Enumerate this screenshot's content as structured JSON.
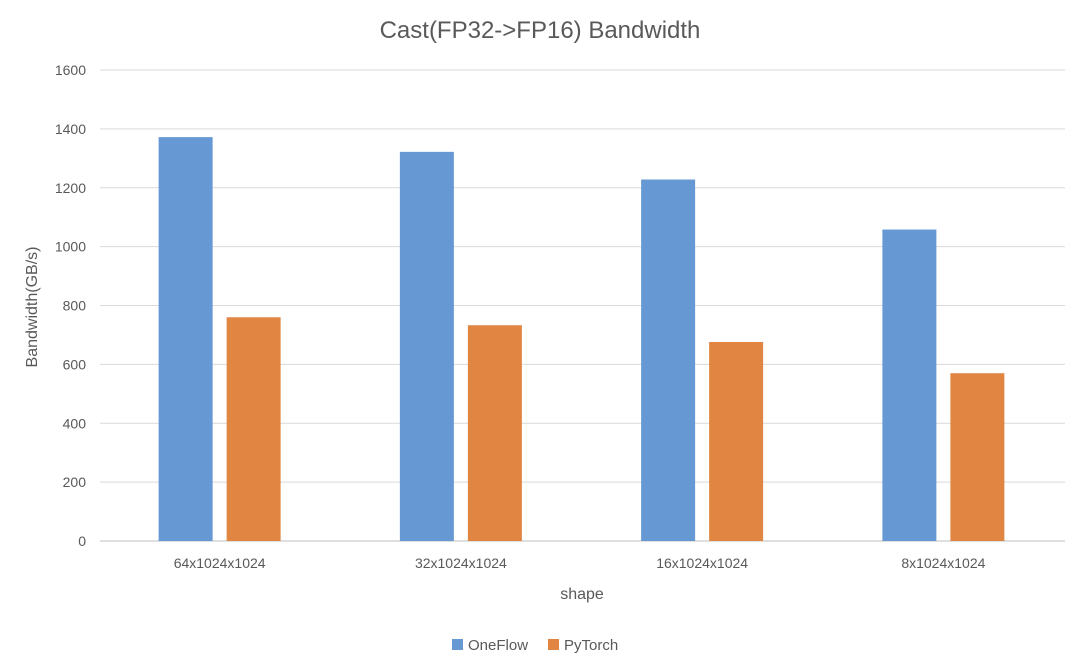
{
  "chart_data": {
    "type": "bar",
    "title": "Cast(FP32->FP16) Bandwidth",
    "xlabel": "shape",
    "ylabel": "Bandwidth(GB/s)",
    "categories": [
      "64x1024x1024",
      "32x1024x1024",
      "16x1024x1024",
      "8x1024x1024"
    ],
    "series": [
      {
        "name": "OneFlow",
        "color": "#6699d3",
        "values": [
          1372,
          1322,
          1228,
          1058
        ]
      },
      {
        "name": "PyTorch",
        "color": "#e08642",
        "values": [
          760,
          733,
          676,
          570
        ]
      }
    ],
    "ylim": [
      0,
      1600
    ],
    "yticks": [
      "0",
      "200",
      "400",
      "600",
      "800",
      "1000",
      "1200",
      "1400",
      "1600"
    ],
    "grid": true,
    "legend": "bottom-center"
  }
}
